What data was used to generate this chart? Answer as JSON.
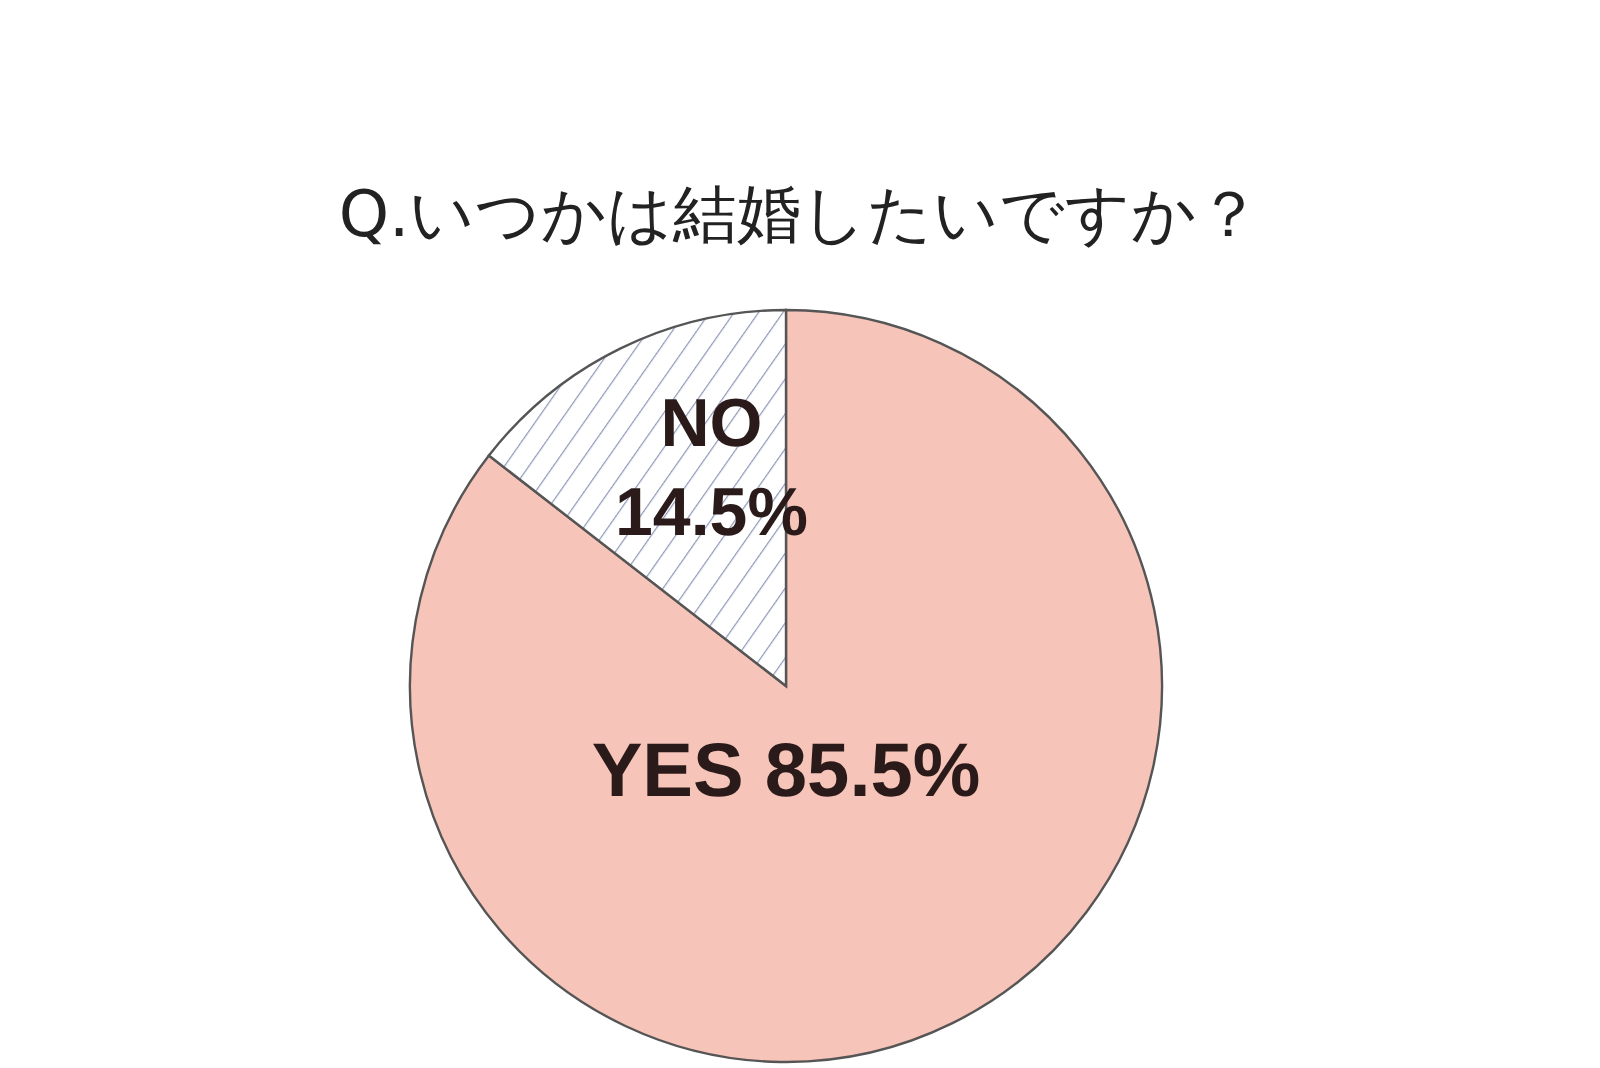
{
  "chart_data": {
    "type": "pie",
    "title": "Q.いつかは結婚したいですか？",
    "categories": [
      "YES",
      "NO"
    ],
    "values": [
      85.5,
      14.5
    ],
    "colors": [
      "#f6c4b8",
      "#ffffff"
    ],
    "value_labels": [
      "85.5%",
      "14.5%"
    ]
  }
}
